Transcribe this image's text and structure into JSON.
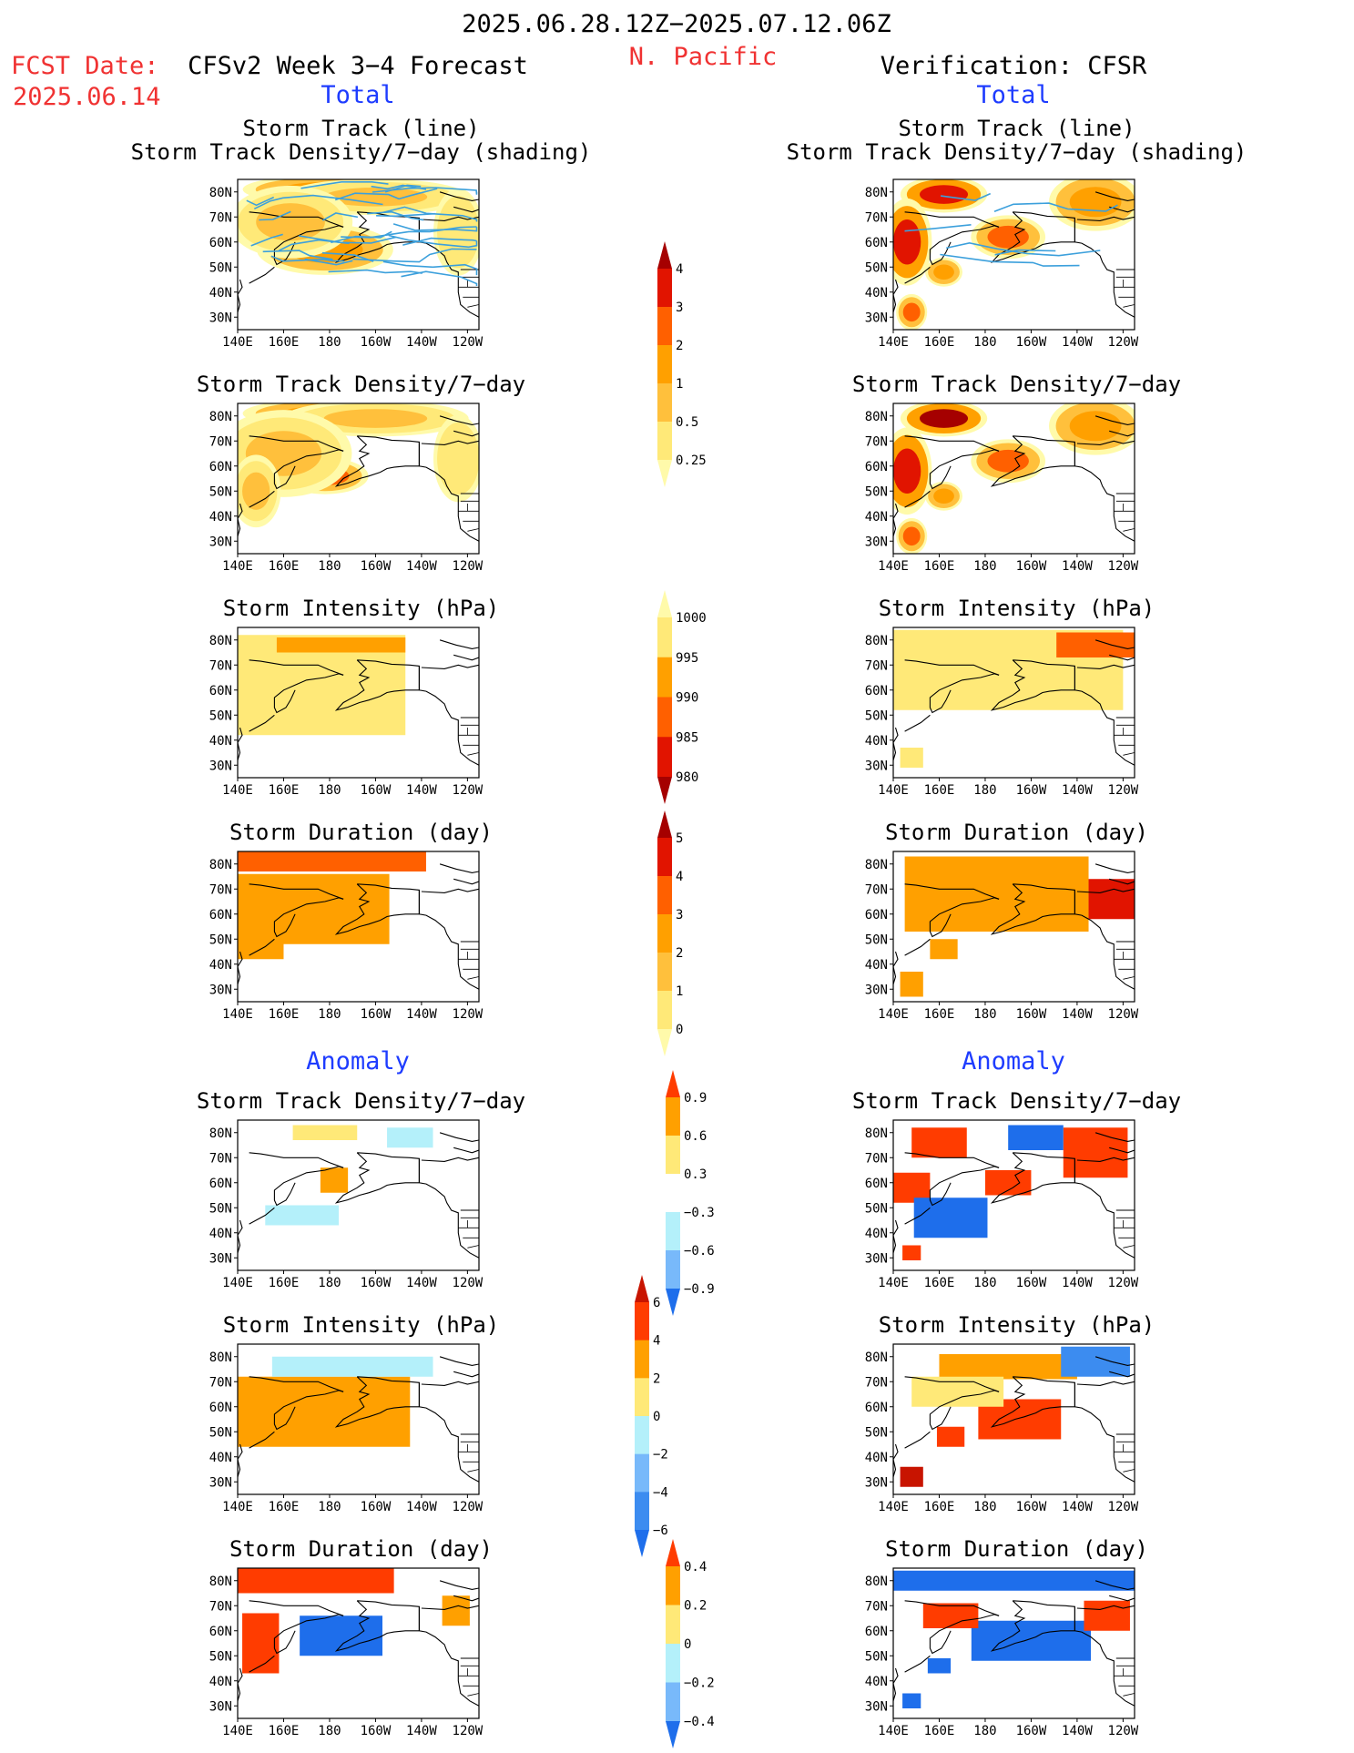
{
  "header": {
    "date_range": "2025.06.28.12Z−2025.07.12.06Z",
    "region": "N. Pacific",
    "fcst_label": "FCST Date:",
    "fcst_date": "2025.06.14",
    "left_title": "CFSv2 Week 3−4 Forecast",
    "right_title": "Verification: CFSR",
    "left_section": "Total",
    "right_section": "Total",
    "anomaly_left": "Anomaly",
    "anomaly_right": "Anomaly"
  },
  "colors": {
    "title_red": "#f03232",
    "section_blue": "#1e3cff",
    "track_line": "#3ca0dc",
    "land_outline": "#000000"
  },
  "axes": {
    "lon_ticks": [
      "140E",
      "160E",
      "180",
      "160W",
      "140W",
      "120W"
    ],
    "lat_ticks": [
      "80N",
      "70N",
      "60N",
      "50N",
      "40N",
      "30N"
    ]
  },
  "colorbars": [
    {
      "id": "density",
      "levels": [
        "0.25",
        "0.5",
        "1",
        "2",
        "3",
        "4"
      ],
      "colors": [
        "#fffaaa",
        "#ffe978",
        "#ffc03c",
        "#ffa000",
        "#ff6000",
        "#e11400",
        "#a50000"
      ]
    },
    {
      "id": "intensity",
      "levels": [
        "1000",
        "995",
        "990",
        "985",
        "980"
      ],
      "colors": [
        "#fffaaa",
        "#ffe978",
        "#ffa000",
        "#ff6000",
        "#e11400",
        "#a50000"
      ]
    },
    {
      "id": "duration",
      "levels": [
        "0",
        "1",
        "2",
        "3",
        "4",
        "5"
      ],
      "colors": [
        "#fffaaa",
        "#ffe978",
        "#ffc03c",
        "#ffa000",
        "#ff6000",
        "#e11400",
        "#a50000"
      ]
    },
    {
      "id": "anom_density",
      "levels": [
        "0.9",
        "0.6",
        "0.3",
        "−0.3",
        "−0.6",
        "−0.9"
      ],
      "colors": [
        "#ff3c00",
        "#ffa000",
        "#ffe978",
        "#ffffff",
        "#b4f0fa",
        "#78b9fa",
        "#1e6eeb"
      ]
    },
    {
      "id": "anom_intensity",
      "levels": [
        "6",
        "4",
        "2",
        "0",
        "−2",
        "−4",
        "−6"
      ],
      "colors": [
        "#c81400",
        "#ff3c00",
        "#ffa000",
        "#ffe978",
        "#b4f0fa",
        "#78b9fa",
        "#3c8cf0",
        "#1e6eeb"
      ]
    },
    {
      "id": "anom_duration",
      "levels": [
        "0.4",
        "0.2",
        "0",
        "−0.2",
        "−0.4"
      ],
      "colors": [
        "#ff3c00",
        "#ffa000",
        "#ffe978",
        "#b4f0fa",
        "#78b9fa",
        "#1e6eeb"
      ]
    }
  ],
  "chart_data": [
    {
      "type": "heatmap",
      "panel": "forecast_total_track",
      "title": "Storm Track (line)",
      "subtitle": "Storm Track Density/7−day (shading)",
      "colorbar": "density",
      "xlim": [
        140,
        245
      ],
      "ylim": [
        25,
        85
      ],
      "blobs": [
        {
          "lon": 180,
          "lat": 81,
          "rlon": 28,
          "rlat": 4,
          "value": 1.5
        },
        {
          "lon": 178,
          "lat": 57,
          "rlon": 22,
          "rlat": 7,
          "value": 1.5
        },
        {
          "lon": 200,
          "lat": 78,
          "rlon": 30,
          "rlat": 5,
          "value": 0.7
        },
        {
          "lon": 163,
          "lat": 68,
          "rlon": 20,
          "rlat": 10,
          "value": 0.7
        },
        {
          "lon": 236,
          "lat": 64,
          "rlon": 8,
          "rlat": 12,
          "value": 0.3
        }
      ]
    },
    {
      "type": "heatmap",
      "panel": "forecast_total_density",
      "title": "Storm Track Density/7−day",
      "colorbar": "density",
      "xlim": [
        140,
        245
      ],
      "ylim": [
        25,
        85
      ],
      "blobs": [
        {
          "lon": 180,
          "lat": 81,
          "rlon": 28,
          "rlat": 4,
          "value": 1.5
        },
        {
          "lon": 178,
          "lat": 56,
          "rlon": 14,
          "rlat": 5,
          "value": 2.5
        },
        {
          "lon": 200,
          "lat": 79,
          "rlon": 30,
          "rlat": 5,
          "value": 0.7
        },
        {
          "lon": 160,
          "lat": 65,
          "rlon": 22,
          "rlat": 12,
          "value": 0.8
        },
        {
          "lon": 148,
          "lat": 50,
          "rlon": 8,
          "rlat": 10,
          "value": 0.6
        },
        {
          "lon": 236,
          "lat": 63,
          "rlon": 8,
          "rlat": 12,
          "value": 0.3
        }
      ]
    },
    {
      "type": "heatmap",
      "panel": "forecast_total_intensity",
      "title": "Storm Intensity (hPa)",
      "colorbar": "intensity",
      "xlim": [
        140,
        245
      ],
      "ylim": [
        25,
        85
      ],
      "blobs": [
        {
          "lon": 175,
          "lat": 62,
          "rlon": 38,
          "rlat": 20,
          "value": 998
        },
        {
          "lon": 185,
          "lat": 78,
          "rlon": 28,
          "rlat": 3,
          "value": 993
        }
      ]
    },
    {
      "type": "heatmap",
      "panel": "forecast_total_duration",
      "title": "Storm Duration (day)",
      "colorbar": "duration",
      "xlim": [
        140,
        245
      ],
      "ylim": [
        25,
        85
      ],
      "blobs": [
        {
          "lon": 180,
          "lat": 81,
          "rlon": 42,
          "rlat": 4,
          "value": 3.5
        },
        {
          "lon": 170,
          "lat": 62,
          "rlon": 36,
          "rlat": 14,
          "value": 2.4
        },
        {
          "lon": 150,
          "lat": 48,
          "rlon": 10,
          "rlat": 6,
          "value": 2.4
        }
      ]
    },
    {
      "type": "heatmap",
      "panel": "verification_total_track",
      "title": "Storm Track (line)",
      "subtitle": "Storm Track Density/7−day (shading)",
      "colorbar": "density",
      "xlim": [
        140,
        245
      ],
      "ylim": [
        25,
        85
      ],
      "blobs": [
        {
          "lon": 162,
          "lat": 79,
          "rlon": 14,
          "rlat": 5,
          "value": 3.5
        },
        {
          "lon": 146,
          "lat": 60,
          "rlon": 8,
          "rlat": 12,
          "value": 3.5
        },
        {
          "lon": 190,
          "lat": 62,
          "rlon": 12,
          "rlat": 6,
          "value": 2.5
        },
        {
          "lon": 228,
          "lat": 76,
          "rlon": 15,
          "rlat": 8,
          "value": 1.5
        },
        {
          "lon": 162,
          "lat": 48,
          "rlon": 6,
          "rlat": 4,
          "value": 1.5
        },
        {
          "lon": 148,
          "lat": 32,
          "rlon": 5,
          "rlat": 5,
          "value": 2
        }
      ]
    },
    {
      "type": "heatmap",
      "panel": "verification_total_density",
      "title": "Storm Track Density/7−day",
      "colorbar": "density",
      "xlim": [
        140,
        245
      ],
      "ylim": [
        25,
        85
      ],
      "blobs": [
        {
          "lon": 162,
          "lat": 79,
          "rlon": 14,
          "rlat": 5,
          "value": 4
        },
        {
          "lon": 146,
          "lat": 58,
          "rlon": 8,
          "rlat": 12,
          "value": 3.5
        },
        {
          "lon": 190,
          "lat": 62,
          "rlon": 12,
          "rlat": 6,
          "value": 2.5
        },
        {
          "lon": 228,
          "lat": 76,
          "rlon": 15,
          "rlat": 8,
          "value": 1.5
        },
        {
          "lon": 162,
          "lat": 48,
          "rlon": 6,
          "rlat": 4,
          "value": 1.5
        },
        {
          "lon": 148,
          "lat": 32,
          "rlon": 5,
          "rlat": 5,
          "value": 2
        }
      ]
    },
    {
      "type": "heatmap",
      "panel": "verification_total_intensity",
      "title": "Storm Intensity (hPa)",
      "colorbar": "intensity",
      "xlim": [
        140,
        245
      ],
      "ylim": [
        25,
        85
      ],
      "blobs": [
        {
          "lon": 190,
          "lat": 68,
          "rlon": 50,
          "rlat": 16,
          "value": 997
        },
        {
          "lon": 228,
          "lat": 78,
          "rlon": 17,
          "rlat": 5,
          "value": 987
        },
        {
          "lon": 148,
          "lat": 33,
          "rlon": 5,
          "rlat": 4,
          "value": 998
        }
      ]
    },
    {
      "type": "heatmap",
      "panel": "verification_total_duration",
      "title": "Storm Duration (day)",
      "colorbar": "duration",
      "xlim": [
        140,
        245
      ],
      "ylim": [
        25,
        85
      ],
      "blobs": [
        {
          "lon": 185,
          "lat": 68,
          "rlon": 40,
          "rlat": 15,
          "value": 2.5
        },
        {
          "lon": 235,
          "lat": 66,
          "rlon": 10,
          "rlat": 8,
          "value": 4.5
        },
        {
          "lon": 162,
          "lat": 46,
          "rlon": 6,
          "rlat": 4,
          "value": 2.5
        },
        {
          "lon": 148,
          "lat": 32,
          "rlon": 5,
          "rlat": 5,
          "value": 2.5
        }
      ]
    },
    {
      "type": "heatmap",
      "panel": "forecast_anomaly_density",
      "title": "Storm Track Density/7−day",
      "colorbar": "anom_density",
      "xlim": [
        140,
        245
      ],
      "ylim": [
        25,
        85
      ],
      "blobs": [
        {
          "lon": 178,
          "lat": 80,
          "rlon": 14,
          "rlat": 3,
          "value": 0.45
        },
        {
          "lon": 182,
          "lat": 61,
          "rlon": 6,
          "rlat": 5,
          "value": 0.6
        },
        {
          "lon": 215,
          "lat": 78,
          "rlon": 10,
          "rlat": 4,
          "value": -0.4
        },
        {
          "lon": 168,
          "lat": 47,
          "rlon": 16,
          "rlat": 4,
          "value": -0.4
        }
      ]
    },
    {
      "type": "heatmap",
      "panel": "forecast_anomaly_intensity",
      "title": "Storm Intensity (hPa)",
      "colorbar": "anom_intensity",
      "xlim": [
        140,
        245
      ],
      "ylim": [
        25,
        85
      ],
      "blobs": [
        {
          "lon": 175,
          "lat": 58,
          "rlon": 40,
          "rlat": 14,
          "value": 2.5
        },
        {
          "lon": 190,
          "lat": 76,
          "rlon": 35,
          "rlat": 4,
          "value": -1
        }
      ]
    },
    {
      "type": "heatmap",
      "panel": "forecast_anomaly_duration",
      "title": "Storm Duration (day)",
      "colorbar": "anom_duration",
      "xlim": [
        140,
        245
      ],
      "ylim": [
        25,
        85
      ],
      "blobs": [
        {
          "lon": 170,
          "lat": 80,
          "rlon": 38,
          "rlat": 5,
          "value": 0.45
        },
        {
          "lon": 150,
          "lat": 55,
          "rlon": 8,
          "rlat": 12,
          "value": 0.45
        },
        {
          "lon": 185,
          "lat": 58,
          "rlon": 18,
          "rlat": 8,
          "value": -0.5
        },
        {
          "lon": 235,
          "lat": 68,
          "rlon": 6,
          "rlat": 6,
          "value": 0.25
        }
      ]
    },
    {
      "type": "heatmap",
      "panel": "verification_anomaly_density",
      "title": "Storm Track Density/7−day",
      "colorbar": "anom_density",
      "xlim": [
        140,
        245
      ],
      "ylim": [
        25,
        85
      ],
      "blobs": [
        {
          "lon": 160,
          "lat": 76,
          "rlon": 12,
          "rlat": 6,
          "value": 1
        },
        {
          "lon": 148,
          "lat": 58,
          "rlon": 8,
          "rlat": 6,
          "value": 1
        },
        {
          "lon": 190,
          "lat": 60,
          "rlon": 10,
          "rlat": 5,
          "value": 1
        },
        {
          "lon": 228,
          "lat": 72,
          "rlon": 14,
          "rlat": 10,
          "value": 1
        },
        {
          "lon": 202,
          "lat": 78,
          "rlon": 12,
          "rlat": 5,
          "value": -1
        },
        {
          "lon": 165,
          "lat": 46,
          "rlon": 16,
          "rlat": 8,
          "value": -1
        },
        {
          "lon": 148,
          "lat": 32,
          "rlon": 4,
          "rlat": 3,
          "value": 1
        }
      ]
    },
    {
      "type": "heatmap",
      "panel": "verification_anomaly_intensity",
      "title": "Storm Intensity (hPa)",
      "colorbar": "anom_intensity",
      "xlim": [
        140,
        245
      ],
      "ylim": [
        25,
        85
      ],
      "blobs": [
        {
          "lon": 190,
          "lat": 76,
          "rlon": 30,
          "rlat": 5,
          "value": 3
        },
        {
          "lon": 195,
          "lat": 55,
          "rlon": 18,
          "rlat": 8,
          "value": 5
        },
        {
          "lon": 165,
          "lat": 48,
          "rlon": 6,
          "rlat": 4,
          "value": 5
        },
        {
          "lon": 148,
          "lat": 32,
          "rlon": 5,
          "rlat": 4,
          "value": 7
        },
        {
          "lon": 228,
          "lat": 78,
          "rlon": 15,
          "rlat": 6,
          "value": -5
        },
        {
          "lon": 168,
          "lat": 66,
          "rlon": 20,
          "rlat": 6,
          "value": 1
        }
      ]
    },
    {
      "type": "heatmap",
      "panel": "verification_anomaly_duration",
      "title": "Storm Duration (day)",
      "colorbar": "anom_duration",
      "xlim": [
        140,
        245
      ],
      "ylim": [
        25,
        85
      ],
      "blobs": [
        {
          "lon": 190,
          "lat": 80,
          "rlon": 55,
          "rlat": 4,
          "value": -0.5
        },
        {
          "lon": 200,
          "lat": 56,
          "rlon": 26,
          "rlat": 8,
          "value": -0.5
        },
        {
          "lon": 165,
          "lat": 66,
          "rlon": 12,
          "rlat": 5,
          "value": 0.45
        },
        {
          "lon": 233,
          "lat": 66,
          "rlon": 10,
          "rlat": 6,
          "value": 0.45
        },
        {
          "lon": 160,
          "lat": 46,
          "rlon": 5,
          "rlat": 3,
          "value": -0.5
        },
        {
          "lon": 148,
          "lat": 32,
          "rlon": 4,
          "rlat": 3,
          "value": -0.5
        }
      ]
    }
  ]
}
